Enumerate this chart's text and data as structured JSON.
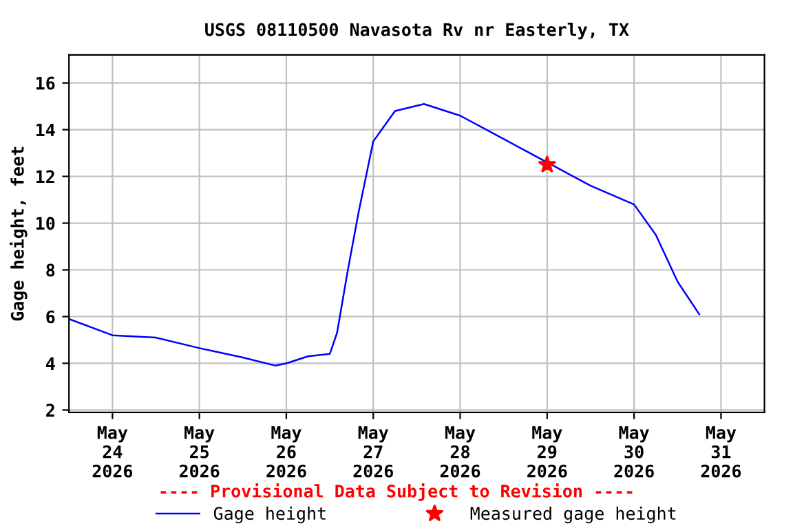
{
  "chart_data": {
    "type": "line",
    "title": "USGS 08110500 Navasota Rv nr Easterly, TX",
    "ylabel": "Gage height, feet",
    "annotations": [
      "---- Provisional Data Subject to Revision ----"
    ],
    "series": [
      {
        "name": "Gage height",
        "color": "#0000ff",
        "marker": "none",
        "x": [
          "2026-05-23T12:00",
          "2026-05-24T00:00",
          "2026-05-24T12:00",
          "2026-05-25T00:00",
          "2026-05-25T12:00",
          "2026-05-25T21:00",
          "2026-05-26T00:00",
          "2026-05-26T06:00",
          "2026-05-26T12:00",
          "2026-05-26T14:00",
          "2026-05-26T17:00",
          "2026-05-26T20:00",
          "2026-05-27T00:00",
          "2026-05-27T06:00",
          "2026-05-27T14:00",
          "2026-05-28T00:00",
          "2026-05-28T12:00",
          "2026-05-29T00:00",
          "2026-05-29T12:00",
          "2026-05-30T00:00",
          "2026-05-30T06:00",
          "2026-05-30T12:00",
          "2026-05-30T18:00"
        ],
        "values": [
          5.9,
          5.2,
          5.1,
          4.65,
          4.25,
          3.9,
          4.0,
          4.3,
          4.4,
          5.3,
          8.0,
          10.5,
          13.5,
          14.8,
          15.1,
          14.6,
          13.6,
          12.6,
          11.6,
          10.8,
          9.5,
          7.5,
          6.1
        ]
      },
      {
        "name": "Measured gage height",
        "color": "#ff0000",
        "type": "scatter",
        "marker": "star",
        "x": [
          "2026-05-29T00:00"
        ],
        "values": [
          12.5
        ]
      }
    ],
    "xlim": [
      "2026-05-23T12:00",
      "2026-05-31T12:00"
    ],
    "xticks": [
      {
        "value": "2026-05-24",
        "label": "May\n24\n2026"
      },
      {
        "value": "2026-05-25",
        "label": "May\n25\n2026"
      },
      {
        "value": "2026-05-26",
        "label": "May\n26\n2026"
      },
      {
        "value": "2026-05-27",
        "label": "May\n27\n2026"
      },
      {
        "value": "2026-05-28",
        "label": "May\n28\n2026"
      },
      {
        "value": "2026-05-29",
        "label": "May\n29\n2026"
      },
      {
        "value": "2026-05-30",
        "label": "May\n30\n2026"
      },
      {
        "value": "2026-05-31",
        "label": "May\n31\n2026"
      }
    ],
    "ylim": [
      1.9,
      17.2
    ],
    "yticks": [
      2,
      4,
      6,
      8,
      10,
      12,
      14,
      16
    ],
    "grid": true,
    "legend": "bottom"
  }
}
